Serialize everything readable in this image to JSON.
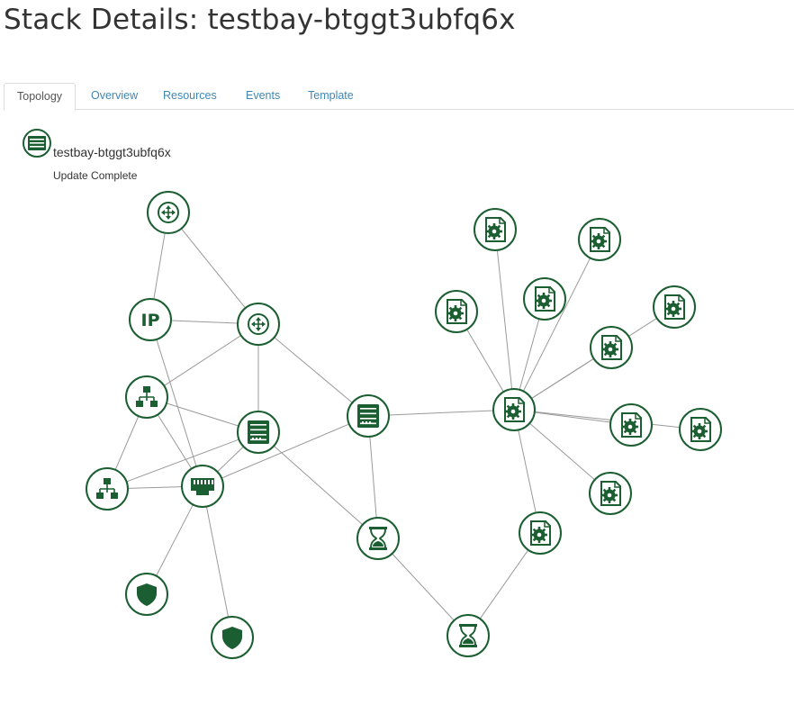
{
  "page": {
    "title": "Stack Details: testbay-btggt3ubfq6x"
  },
  "tabs": [
    {
      "label": "Topology",
      "active": true
    },
    {
      "label": "Overview",
      "active": false
    },
    {
      "label": "Resources",
      "active": false
    },
    {
      "label": "Events",
      "active": false
    },
    {
      "label": "Template",
      "active": false
    }
  ],
  "stack": {
    "name": "testbay-btggt3ubfq6x",
    "status": "Update Complete",
    "icon": "server-stack-icon"
  },
  "colors": {
    "node_stroke": "#1b5e31",
    "edge": "#9a9a9a",
    "tab_link": "#3f86b4"
  },
  "topology": {
    "nodes": [
      {
        "id": "router-1",
        "icon": "router-icon"
      },
      {
        "id": "floating-ip",
        "icon": "ip-icon"
      },
      {
        "id": "router-2",
        "icon": "router-icon"
      },
      {
        "id": "network-1",
        "icon": "network-icon"
      },
      {
        "id": "server-main",
        "icon": "server-icon"
      },
      {
        "id": "network-2",
        "icon": "network-icon"
      },
      {
        "id": "port",
        "icon": "port-icon"
      },
      {
        "id": "secgroup-1",
        "icon": "shield-icon"
      },
      {
        "id": "secgroup-2",
        "icon": "shield-icon"
      },
      {
        "id": "server-small",
        "icon": "server-icon"
      },
      {
        "id": "wait-1",
        "icon": "hourglass-icon"
      },
      {
        "id": "wait-2",
        "icon": "hourglass-icon"
      },
      {
        "id": "config-hub",
        "icon": "config-icon"
      },
      {
        "id": "config-1",
        "icon": "config-icon"
      },
      {
        "id": "config-2",
        "icon": "config-icon"
      },
      {
        "id": "config-3",
        "icon": "config-icon"
      },
      {
        "id": "config-4",
        "icon": "config-icon"
      },
      {
        "id": "config-5",
        "icon": "config-icon"
      },
      {
        "id": "config-6",
        "icon": "config-icon"
      },
      {
        "id": "config-7",
        "icon": "config-icon"
      },
      {
        "id": "config-8",
        "icon": "config-icon"
      },
      {
        "id": "config-9",
        "icon": "config-icon"
      },
      {
        "id": "config-10",
        "icon": "config-icon"
      }
    ],
    "edges": [
      [
        "router-1",
        "floating-ip"
      ],
      [
        "router-1",
        "router-2"
      ],
      [
        "floating-ip",
        "router-2"
      ],
      [
        "floating-ip",
        "port"
      ],
      [
        "router-2",
        "network-1"
      ],
      [
        "router-2",
        "server-main"
      ],
      [
        "router-2",
        "server-small"
      ],
      [
        "network-1",
        "server-main"
      ],
      [
        "network-1",
        "port"
      ],
      [
        "network-1",
        "network-2"
      ],
      [
        "server-main",
        "network-2"
      ],
      [
        "server-main",
        "port"
      ],
      [
        "server-main",
        "wait-1"
      ],
      [
        "network-2",
        "port"
      ],
      [
        "port",
        "server-small"
      ],
      [
        "port",
        "secgroup-1"
      ],
      [
        "port",
        "secgroup-2"
      ],
      [
        "server-small",
        "config-hub"
      ],
      [
        "server-small",
        "wait-1"
      ],
      [
        "wait-1",
        "wait-2"
      ],
      [
        "wait-2",
        "config-9"
      ],
      [
        "config-hub",
        "config-1"
      ],
      [
        "config-hub",
        "config-2"
      ],
      [
        "config-hub",
        "config-3"
      ],
      [
        "config-hub",
        "config-4"
      ],
      [
        "config-hub",
        "config-5"
      ],
      [
        "config-hub",
        "config-6"
      ],
      [
        "config-hub",
        "config-7"
      ],
      [
        "config-hub",
        "config-8"
      ],
      [
        "config-hub",
        "config-9"
      ],
      [
        "config-hub",
        "config-10"
      ]
    ]
  }
}
